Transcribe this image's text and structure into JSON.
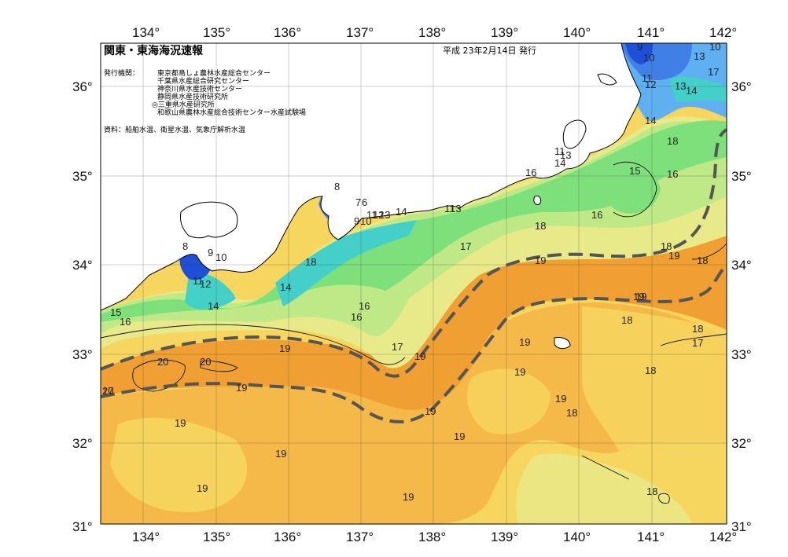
{
  "title": "関東・東海海況速報",
  "date": "平成 23年2月14日 発行",
  "publisher_label": "発行機関：",
  "publishers": [
    "東京都島しょ農林水産総合センター",
    "千葉県水産総合研究センター",
    "神奈川県水産技術センター",
    "静岡県水産技術研究所",
    "◎三重県水産研究所",
    "和歌山県農林水産総合技術センター水産試験場"
  ],
  "source": "資料：船舶水温、衛星水温、気象庁解析水温",
  "lon_ticks": [
    "134°",
    "135°",
    "136°",
    "137°",
    "138°",
    "139°",
    "140°",
    "141°",
    "142°"
  ],
  "lat_ticks": [
    "36°",
    "35°",
    "34°",
    "33°",
    "32°",
    "31°"
  ],
  "temperature_labels": [
    "9",
    "10",
    "13",
    "10",
    "17",
    "11",
    "12",
    "13",
    "14",
    "14",
    "18",
    "11",
    "13",
    "14",
    "15",
    "16",
    "16",
    "18",
    "18",
    "19",
    "18",
    "19",
    "8",
    "7",
    "6",
    "9",
    "10",
    "11",
    "12",
    "13",
    "14",
    "11",
    "13",
    "16",
    "17",
    "18",
    "19",
    "19",
    "19",
    "17",
    "16",
    "16",
    "14",
    "15",
    "8",
    "9",
    "10",
    "11",
    "12",
    "14",
    "16",
    "17",
    "19",
    "20",
    "20",
    "20",
    "19",
    "19",
    "19",
    "19",
    "19",
    "19",
    "18",
    "18",
    "18",
    "17",
    "18",
    "19",
    "19",
    "18",
    "19",
    "19"
  ],
  "colors": {
    "deep_blue": "#1f4fd6",
    "blue": "#3f7fe6",
    "light_blue": "#5fb0f0",
    "cyan": "#44d0c8",
    "green": "#7ee07a",
    "light_green": "#bfe887",
    "yellow_green": "#e8ea8a",
    "yellow": "#f6d65f",
    "light_orange": "#f5b94a",
    "orange": "#f0a032",
    "land": "#ffffff",
    "kuroshio_line": "#555555"
  }
}
